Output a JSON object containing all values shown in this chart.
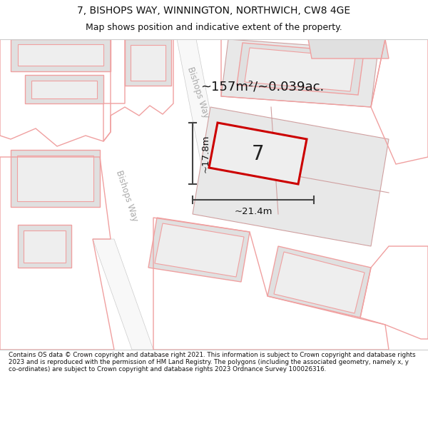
{
  "title_line1": "7, BISHOPS WAY, WINNINGTON, NORTHWICH, CW8 4GE",
  "title_line2": "Map shows position and indicative extent of the property.",
  "area_text": "~157m²/~0.039ac.",
  "dim_width": "~21.4m",
  "dim_height": "~17.8m",
  "plot_number": "7",
  "road_label": "Bishops Way",
  "road_label2": "Bishops Way",
  "footer_text": "Contains OS data © Crown copyright and database right 2021. This information is subject to Crown copyright and database rights 2023 and is reproduced with the permission of HM Land Registry. The polygons (including the associated geometry, namely x, y co-ordinates) are subject to Crown copyright and database rights 2023 Ordnance Survey 100026316.",
  "bg_color": "#ffffff",
  "building_fill": "#e0e0e0",
  "building_edge": "#f0a0a0",
  "parcel_fill": "#e8e8e8",
  "parcel_edge": "#d0a0a0",
  "plot_fill": "#eeeeee",
  "plot_edge": "#cc0000",
  "road_fill": "#f0f0f0",
  "dim_color": "#444444"
}
